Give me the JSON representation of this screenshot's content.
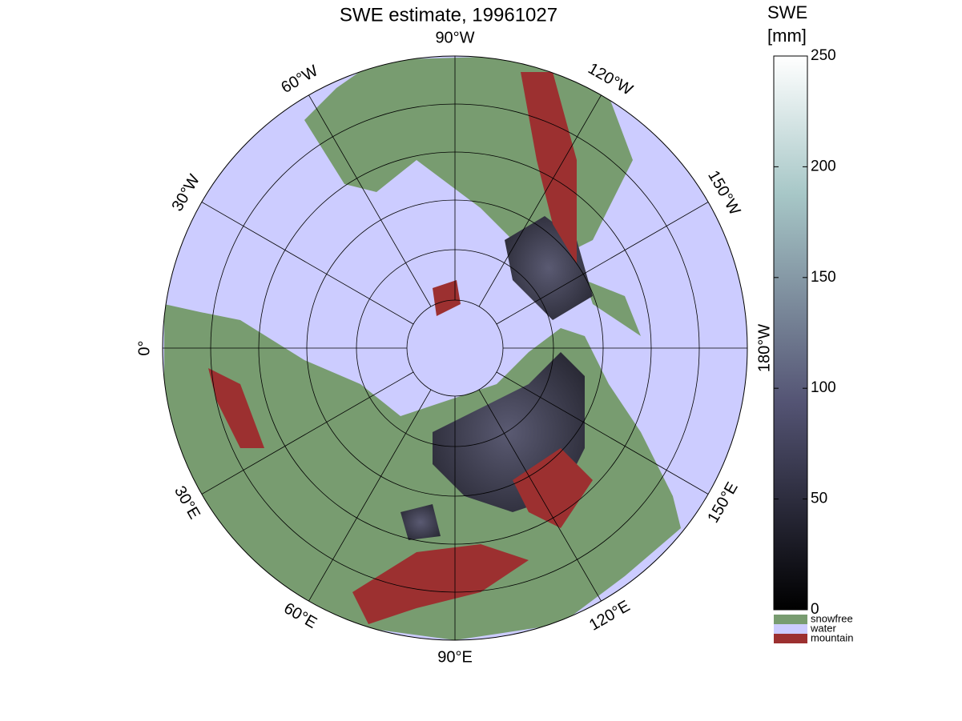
{
  "title": "SWE estimate, 19961027",
  "longitude_labels": [
    "90°W",
    "120°W",
    "150°W",
    "180°W",
    "150°E",
    "120°E",
    "90°E",
    "60°E",
    "30°E",
    "0°",
    "30°W",
    "60°W"
  ],
  "colorbar": {
    "label_lines": [
      "SWE",
      "[mm]"
    ],
    "lim": [
      0,
      250
    ],
    "ticks": [
      0,
      50,
      100,
      150,
      200,
      250
    ]
  },
  "legend": [
    {
      "name": "snowfree",
      "color": "#789c70"
    },
    {
      "name": "water",
      "color": "#ccccff"
    },
    {
      "name": "mountain",
      "color": "#9c3030"
    }
  ]
}
